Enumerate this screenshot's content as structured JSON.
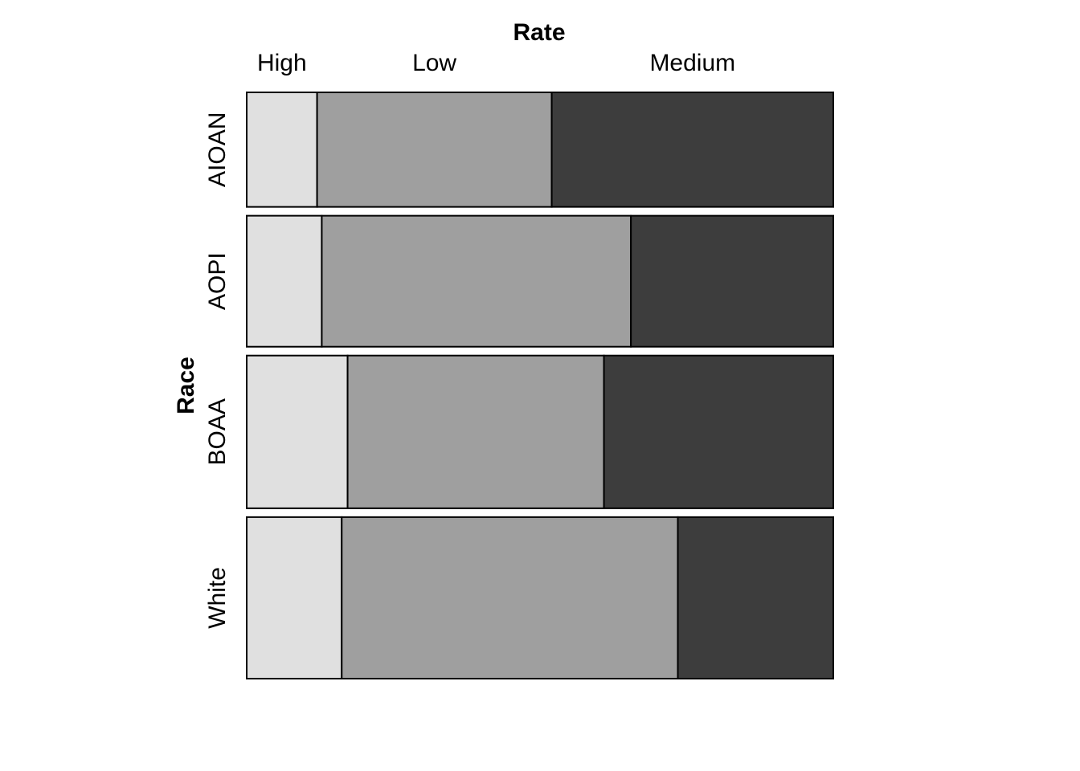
{
  "chart_data": {
    "type": "mosaic",
    "x_variable": "Rate",
    "y_variable": "Race",
    "columns": [
      "High",
      "Low",
      "Medium"
    ],
    "rows": [
      "AIOAN",
      "AOPI",
      "BOAA",
      "White"
    ],
    "row_proportions": [
      0.195,
      0.223,
      0.26,
      0.275
    ],
    "cell_proportions": [
      [
        0.12,
        0.4,
        0.48
      ],
      [
        0.128,
        0.527,
        0.345
      ],
      [
        0.172,
        0.437,
        0.391
      ],
      [
        0.162,
        0.573,
        0.265
      ]
    ],
    "colors": [
      "#e0e0e0",
      "#9f9f9f",
      "#3d3d3d"
    ],
    "grid": false,
    "legend": "none"
  }
}
